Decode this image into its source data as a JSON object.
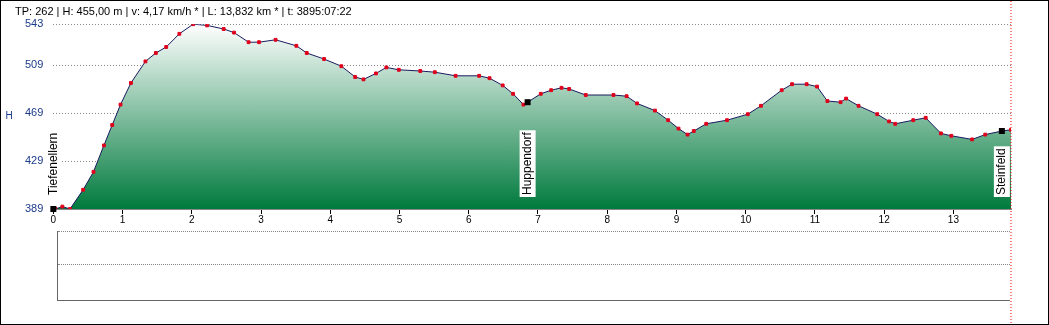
{
  "chart_data": {
    "type": "area",
    "title": "TP: 262 | H: 455,00 m | v: 4,17 km/h * | L: 13,832 km * | t: 3895:07:22",
    "ylabel": "H",
    "series": [
      {
        "color": "#e0001b",
        "x": [
          0.03,
          0.13,
          0.24,
          0.43,
          0.58,
          0.73,
          0.85,
          0.97,
          1.12,
          1.33,
          1.48,
          1.63,
          1.82,
          2.02,
          2.22,
          2.46,
          2.61,
          2.82,
          2.97,
          3.21,
          3.51,
          3.66,
          3.91,
          4.16,
          4.36,
          4.48,
          4.66,
          4.81,
          4.99,
          5.3,
          5.51,
          5.81,
          6.15,
          6.3,
          6.49,
          6.64,
          6.79,
          6.85,
          7.04,
          7.19,
          7.34,
          7.45,
          7.69,
          8.09,
          8.28,
          8.43,
          8.69,
          8.88,
          9.03,
          9.16,
          9.25,
          9.43,
          9.73,
          10.03,
          10.22,
          10.52,
          10.67,
          10.88,
          11.03,
          11.18,
          11.37,
          11.45,
          11.63,
          11.9,
          12.07,
          12.16,
          12.42,
          12.6,
          12.82,
          12.97,
          13.27,
          13.46,
          13.7,
          13.832
        ],
        "values": [
          389,
          391,
          389,
          405,
          420,
          442,
          459,
          476,
          494,
          512,
          519,
          524,
          535,
          543,
          542,
          539,
          536,
          528,
          528,
          530,
          525,
          519,
          514,
          508,
          499,
          497,
          502,
          507,
          505,
          504,
          503,
          500,
          500,
          498,
          492,
          485,
          476,
          478,
          485,
          488,
          490,
          489,
          484,
          484,
          483,
          477,
          471,
          463,
          456,
          451,
          454,
          460,
          463,
          468,
          475,
          488,
          493,
          493,
          491,
          479,
          478,
          481,
          475,
          468,
          462,
          460,
          463,
          465,
          452,
          450,
          447,
          451,
          454,
          455
        ]
      }
    ],
    "marker": "square",
    "xlim": [
      0,
      13.832
    ],
    "xticks": [
      0,
      1,
      2,
      3,
      4,
      5,
      6,
      7,
      8,
      9,
      10,
      11,
      12,
      13
    ],
    "ylim": [
      389,
      543
    ],
    "yticks": [
      389,
      429,
      469,
      509,
      543
    ],
    "grid": "y",
    "legend": false,
    "ref_lines": [
      {
        "axis": "x",
        "value": 13.832,
        "color": "#ff0000",
        "line_style": "dotted"
      }
    ],
    "annotations": [
      {
        "text": "Tiefenellern",
        "x": 0,
        "y": 389
      },
      {
        "text": "Huppendorf",
        "x": 6.85,
        "y": 478
      },
      {
        "text": "Steinfeld",
        "x": 13.7,
        "y": 454
      }
    ]
  }
}
